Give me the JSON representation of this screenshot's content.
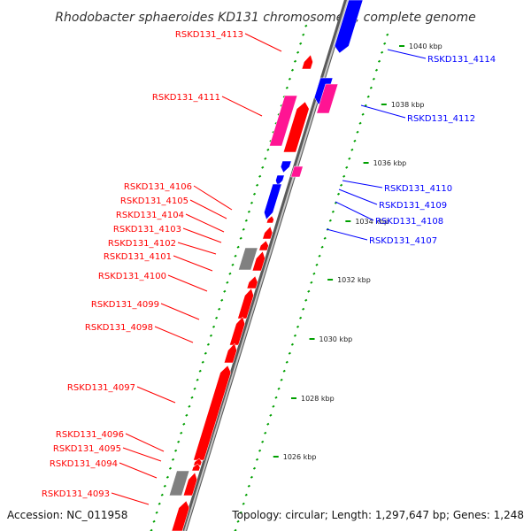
{
  "title": "Rhodobacter sphaeroides KD131 chromosome 2, complete genome",
  "footer": {
    "accession": "Accession: NC_011958",
    "summary": "Topology: circular; Length: 1,297,647 bp; Genes: 1,248"
  },
  "colors": {
    "forward_cds": "#ff0000",
    "reverse_cds": "#0000ff",
    "rna": "#ff1493",
    "other": "#808080",
    "backbone": "#888888",
    "gc_dots": "#00a000"
  },
  "ticks": [
    "1026 kbp",
    "1028 kbp",
    "1030 kbp",
    "1032 kbp",
    "1034 kbp",
    "1036 kbp",
    "1038 kbp",
    "1040 kbp"
  ],
  "labels_left": [
    "RSKD131_4113",
    "RSKD131_4111",
    "RSKD131_4106",
    "RSKD131_4105",
    "RSKD131_4104",
    "RSKD131_4103",
    "RSKD131_4102",
    "RSKD131_4101",
    "RSKD131_4100",
    "RSKD131_4099",
    "RSKD131_4098",
    "RSKD131_4097",
    "RSKD131_4096",
    "RSKD131_4095",
    "RSKD131_4094",
    "RSKD131_4093"
  ],
  "labels_right": [
    "RSKD131_4114",
    "RSKD131_4112",
    "RSKD131_4110",
    "RSKD131_4109",
    "RSKD131_4108",
    "RSKD131_4107"
  ]
}
